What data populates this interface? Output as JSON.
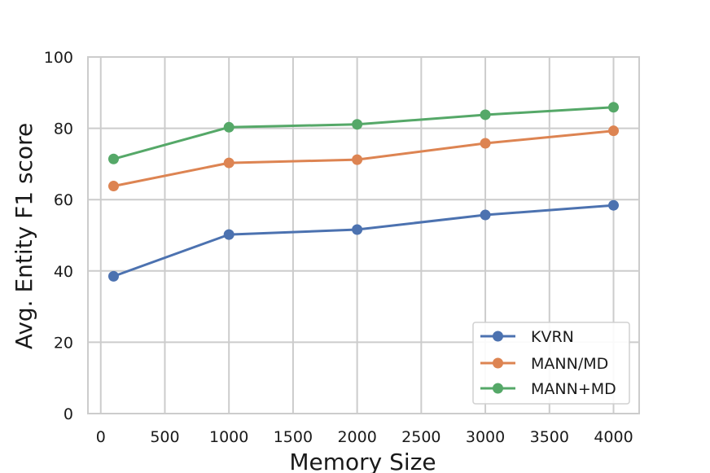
{
  "chart_data": {
    "type": "line",
    "title": "",
    "xlabel": "Memory Size",
    "ylabel": "Avg. Entity F1 score",
    "x": [
      100,
      1000,
      2000,
      3000,
      4000
    ],
    "xlim": [
      -100,
      4200
    ],
    "ylim": [
      0,
      100
    ],
    "xticks": [
      0,
      500,
      1000,
      1500,
      2000,
      2500,
      3000,
      3500,
      4000
    ],
    "yticks": [
      0,
      20,
      40,
      60,
      80,
      100
    ],
    "grid": true,
    "legend_position": "lower-right",
    "series": [
      {
        "name": "KVRN",
        "color": "#4c72b0",
        "values": [
          38.5,
          50.2,
          51.6,
          55.7,
          58.4
        ]
      },
      {
        "name": "MANN/MD",
        "color": "#dd8452",
        "values": [
          63.8,
          70.3,
          71.2,
          75.8,
          79.3
        ]
      },
      {
        "name": "MANN+MD",
        "color": "#55a868",
        "values": [
          71.4,
          80.3,
          81.1,
          83.8,
          85.9
        ]
      }
    ]
  }
}
